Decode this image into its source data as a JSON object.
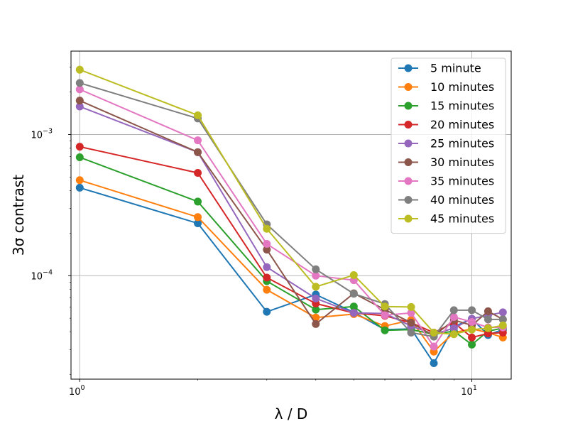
{
  "chart_data": {
    "type": "line",
    "xscale": "log",
    "yscale": "log",
    "xlim": [
      0.95,
      12.6
    ],
    "ylim": [
      1.85e-05,
      0.0039
    ],
    "xlabel": "λ / D",
    "ylabel": "3σ contrast",
    "grid": true,
    "legend_position": "top-right",
    "x": [
      1,
      2,
      3,
      4,
      5,
      6,
      7,
      8,
      9,
      10,
      11,
      12
    ],
    "x_major_ticks": [
      {
        "value": 1,
        "base": "10",
        "exp": "0"
      },
      {
        "value": 10,
        "base": "10",
        "exp": "1"
      }
    ],
    "y_major_ticks": [
      {
        "value": 0.0001,
        "base": "10",
        "exp": "−4"
      },
      {
        "value": 0.001,
        "base": "10",
        "exp": "−3"
      }
    ],
    "series": [
      {
        "name": "5 minute",
        "color": "#1f77b4",
        "values": [
          0.00042,
          0.000235,
          5.55e-05,
          7.35e-05,
          5.5e-05,
          4.15e-05,
          4.2e-05,
          2.4e-05,
          4.35e-05,
          4.95e-05,
          3.8e-05,
          4.15e-05
        ]
      },
      {
        "name": "10 minutes",
        "color": "#ff7f0e",
        "values": [
          0.000475,
          0.00026,
          7.95e-05,
          5.05e-05,
          5.35e-05,
          4.4e-05,
          4.85e-05,
          2.9e-05,
          3.95e-05,
          4.2e-05,
          3.95e-05,
          3.65e-05
        ]
      },
      {
        "name": "15 minutes",
        "color": "#2ca02c",
        "values": [
          0.00069,
          0.000335,
          9.15e-05,
          5.75e-05,
          6.05e-05,
          4.1e-05,
          4.15e-05,
          3.85e-05,
          4.05e-05,
          3.25e-05,
          4.05e-05,
          4.25e-05
        ]
      },
      {
        "name": "20 minutes",
        "color": "#d62728",
        "values": [
          0.00082,
          0.000535,
          9.7e-05,
          6.35e-05,
          5.45e-05,
          5.2e-05,
          4.65e-05,
          3.95e-05,
          4.65e-05,
          3.65e-05,
          3.9e-05,
          3.95e-05
        ]
      },
      {
        "name": "25 minutes",
        "color": "#9467bd",
        "values": [
          0.00158,
          0.00075,
          0.000115,
          6.9e-05,
          5.45e-05,
          5.4e-05,
          4.4e-05,
          3.85e-05,
          4.25e-05,
          4.95e-05,
          5.25e-05,
          5.5e-05
        ]
      },
      {
        "name": "30 minutes",
        "color": "#8c564b",
        "values": [
          0.00174,
          0.00075,
          0.000153,
          4.55e-05,
          7.5e-05,
          5.75e-05,
          4.65e-05,
          3.75e-05,
          4.85e-05,
          4.45e-05,
          5.6e-05,
          4.9e-05
        ]
      },
      {
        "name": "35 minutes",
        "color": "#e377c2",
        "values": [
          0.00209,
          0.00091,
          0.000168,
          0.0001,
          9.3e-05,
          5.25e-05,
          5.45e-05,
          3.15e-05,
          5.1e-05,
          4.7e-05,
          4.3e-05,
          4.3e-05
        ]
      },
      {
        "name": "40 minutes",
        "color": "#7f7f7f",
        "values": [
          0.00232,
          0.0013,
          0.000231,
          0.000111,
          7.45e-05,
          6.3e-05,
          3.95e-05,
          3.7e-05,
          5.7e-05,
          5.7e-05,
          4.9e-05,
          4.9e-05
        ]
      },
      {
        "name": "45 minutes",
        "color": "#bcbd22",
        "values": [
          0.00288,
          0.00137,
          0.000215,
          8.35e-05,
          0.000101,
          6.05e-05,
          6e-05,
          3.95e-05,
          3.85e-05,
          4.15e-05,
          4.25e-05,
          4.45e-05
        ]
      }
    ]
  }
}
